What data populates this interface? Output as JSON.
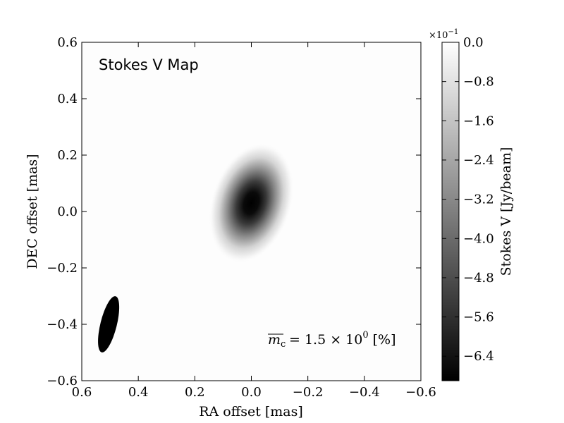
{
  "chart_data": {
    "type": "heatmap",
    "title": "Stokes V Map",
    "xlabel": "RA offset [mas]",
    "ylabel": "DEC offset [mas]",
    "xlim": [
      0.6,
      -0.6
    ],
    "ylim": [
      -0.6,
      0.6
    ],
    "x_ticks": [
      "0.6",
      "0.4",
      "0.2",
      "0.0",
      "−0.2",
      "−0.4",
      "−0.6"
    ],
    "y_ticks": [
      "−0.6",
      "−0.4",
      "−0.2",
      "0.0",
      "0.2",
      "0.4",
      "0.6"
    ],
    "colormap": "gray",
    "colorbar": {
      "label": "Stokes V [Jy/beam]",
      "multiplier_base": "×10",
      "multiplier_exp": "−1",
      "range": [
        -6.9,
        0.0
      ],
      "ticks": [
        "0.0",
        "−0.8",
        "−1.6",
        "−2.4",
        "−3.2",
        "−4.0",
        "−4.8",
        "−5.6",
        "−6.4"
      ]
    },
    "source": {
      "center_ra": 0.0,
      "center_dec": 0.03,
      "peak_value": -6.9,
      "sigma_major": 0.085,
      "sigma_minor": 0.055,
      "position_angle_deg": -18
    },
    "beam": {
      "center_ra": 0.505,
      "center_dec": -0.4,
      "major": 0.205,
      "minor": 0.058,
      "position_angle_deg": -14
    },
    "annotation": {
      "lhs": "m",
      "lhs_sub": "c",
      "text": "= 1.5 × 10",
      "exponent": "0",
      "unit": "[%]"
    }
  }
}
